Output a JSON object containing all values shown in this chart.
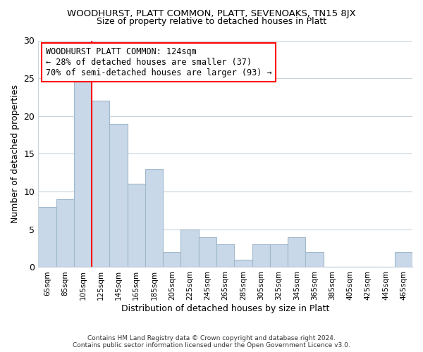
{
  "title": "WOODHURST, PLATT COMMON, PLATT, SEVENOAKS, TN15 8JX",
  "subtitle": "Size of property relative to detached houses in Platt",
  "xlabel": "Distribution of detached houses by size in Platt",
  "ylabel": "Number of detached properties",
  "bar_color": "#c8d8e8",
  "bar_edge_color": "#a0b8cc",
  "bins": [
    "65sqm",
    "85sqm",
    "105sqm",
    "125sqm",
    "145sqm",
    "165sqm",
    "185sqm",
    "205sqm",
    "225sqm",
    "245sqm",
    "265sqm",
    "285sqm",
    "305sqm",
    "325sqm",
    "345sqm",
    "365sqm",
    "385sqm",
    "405sqm",
    "425sqm",
    "445sqm",
    "465sqm"
  ],
  "values": [
    8,
    9,
    25,
    22,
    19,
    11,
    13,
    2,
    5,
    4,
    3,
    1,
    3,
    3,
    4,
    2,
    0,
    0,
    0,
    0,
    2
  ],
  "ylim": [
    0,
    30
  ],
  "yticks": [
    0,
    5,
    10,
    15,
    20,
    25,
    30
  ],
  "red_line_bin_index": 2.5,
  "annotation_lines": [
    "WOODHURST PLATT COMMON: 124sqm",
    "← 28% of detached houses are smaller (37)",
    "70% of semi-detached houses are larger (93) →"
  ],
  "footer_line1": "Contains HM Land Registry data © Crown copyright and database right 2024.",
  "footer_line2": "Contains public sector information licensed under the Open Government Licence v3.0.",
  "background_color": "#ffffff",
  "grid_color": "#c8d4dc"
}
